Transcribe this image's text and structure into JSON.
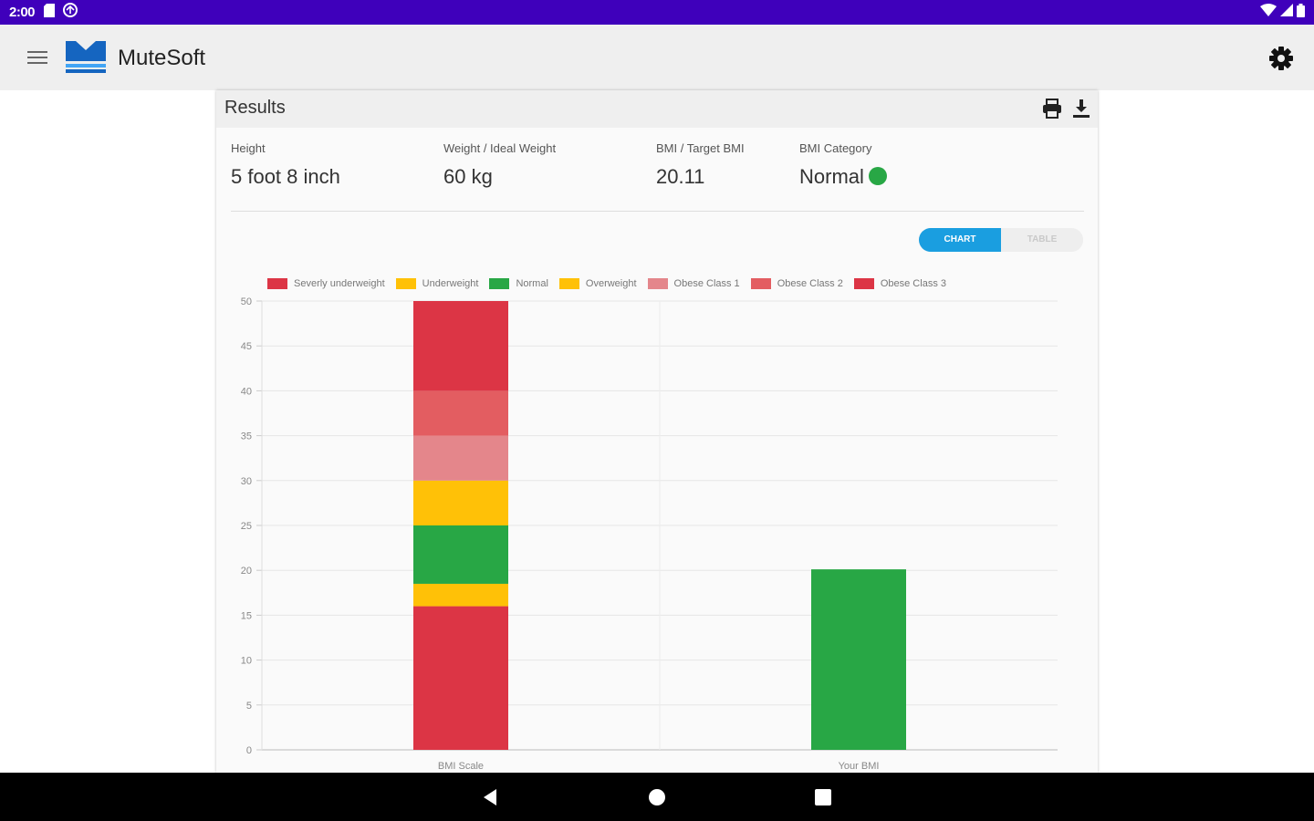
{
  "status_bar": {
    "time": "2:00",
    "left_icons": [
      "sd-card-icon",
      "sync-icon"
    ],
    "right_icons": [
      "wifi-icon",
      "cell-signal-icon",
      "battery-icon"
    ]
  },
  "app_bar": {
    "title": "MuteSoft",
    "logo_colors": [
      "#1565c0",
      "#42a5f5"
    ]
  },
  "results": {
    "title": "Results",
    "metrics": [
      {
        "label": "Height",
        "value": "5 foot 8 inch"
      },
      {
        "label": "Weight / Ideal Weight",
        "value": "60 kg"
      },
      {
        "label": "BMI / Target BMI",
        "value": "20.11"
      },
      {
        "label": "BMI Category",
        "value": "Normal"
      }
    ],
    "category_color": "#28a745"
  },
  "view_toggle": {
    "chart_label": "CHART",
    "table_label": "TABLE",
    "selected": "chart"
  },
  "chart_data": {
    "type": "bar",
    "stacked": true,
    "categories": [
      "BMI Scale",
      "Your BMI"
    ],
    "ylim": [
      0,
      50
    ],
    "yticks": [
      0,
      5,
      10,
      15,
      20,
      25,
      30,
      35,
      40,
      45,
      50
    ],
    "grid": true,
    "legend_position": "top",
    "series": [
      {
        "name": "Severly underweight",
        "color": "#dc3545",
        "values": [
          16,
          0
        ]
      },
      {
        "name": "Underweight",
        "color": "#ffc107",
        "values": [
          2.5,
          0
        ]
      },
      {
        "name": "Normal",
        "color": "#28a745",
        "values": [
          6.5,
          20.11
        ]
      },
      {
        "name": "Overweight",
        "color": "#ffc107",
        "values": [
          5,
          0
        ]
      },
      {
        "name": "Obese Class 1",
        "color": "#e4868b",
        "values": [
          5,
          0
        ]
      },
      {
        "name": "Obese Class 2",
        "color": "#e35d61",
        "values": [
          5,
          0
        ]
      },
      {
        "name": "Obese Class 3",
        "color": "#dc3545",
        "values": [
          10,
          0
        ]
      }
    ]
  }
}
